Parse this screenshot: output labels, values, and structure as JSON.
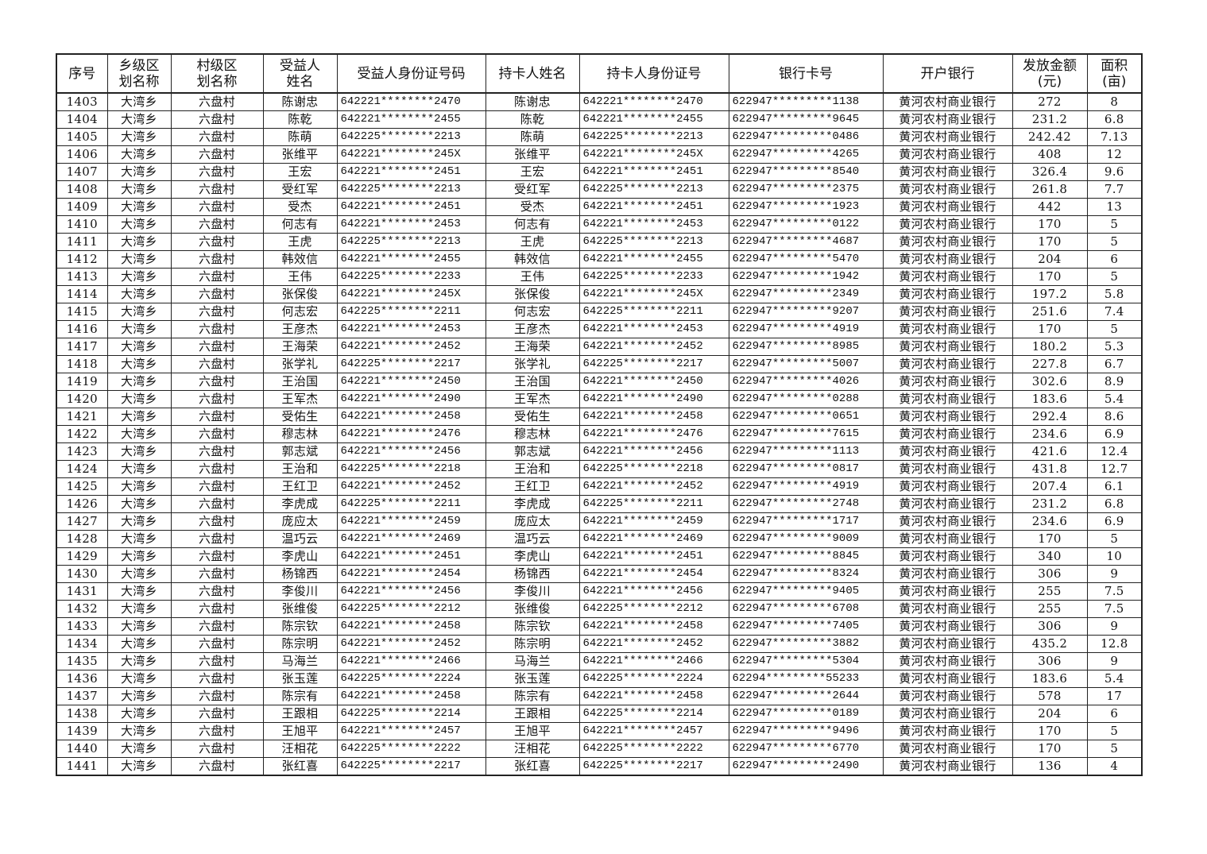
{
  "headers": [
    "序号",
    "乡级区\n划名称",
    "村级区\n划名称",
    "受益人\n姓名",
    "受益人身份证号码",
    "持卡人姓名",
    "持卡人身份证号",
    "银行卡号",
    "开户银行",
    "发放金额\n(元)",
    "面积\n(亩)"
  ],
  "rows": [
    [
      "1403",
      "大湾乡",
      "六盘村",
      "陈谢忠",
      "642221********2470",
      "陈谢忠",
      "642221********2470",
      "622947*********1138",
      "黄河农村商业银行",
      "272",
      "8"
    ],
    [
      "1404",
      "大湾乡",
      "六盘村",
      "陈乾",
      "642221********2455",
      "陈乾",
      "642221********2455",
      "622947*********9645",
      "黄河农村商业银行",
      "231.2",
      "6.8"
    ],
    [
      "1405",
      "大湾乡",
      "六盘村",
      "陈萌",
      "642225********2213",
      "陈萌",
      "642225********2213",
      "622947*********0486",
      "黄河农村商业银行",
      "242.42",
      "7.13"
    ],
    [
      "1406",
      "大湾乡",
      "六盘村",
      "张维平",
      "642221********245X",
      "张维平",
      "642221********245X",
      "622947*********4265",
      "黄河农村商业银行",
      "408",
      "12"
    ],
    [
      "1407",
      "大湾乡",
      "六盘村",
      "王宏",
      "642221********2451",
      "王宏",
      "642221********2451",
      "622947*********8540",
      "黄河农村商业银行",
      "326.4",
      "9.6"
    ],
    [
      "1408",
      "大湾乡",
      "六盘村",
      "受红军",
      "642225********2213",
      "受红军",
      "642225********2213",
      "622947*********2375",
      "黄河农村商业银行",
      "261.8",
      "7.7"
    ],
    [
      "1409",
      "大湾乡",
      "六盘村",
      "受杰",
      "642221********2451",
      "受杰",
      "642221********2451",
      "622947*********1923",
      "黄河农村商业银行",
      "442",
      "13"
    ],
    [
      "1410",
      "大湾乡",
      "六盘村",
      "何志有",
      "642221********2453",
      "何志有",
      "642221********2453",
      "622947*********0122",
      "黄河农村商业银行",
      "170",
      "5"
    ],
    [
      "1411",
      "大湾乡",
      "六盘村",
      "王虎",
      "642225********2213",
      "王虎",
      "642225********2213",
      "622947*********4687",
      "黄河农村商业银行",
      "170",
      "5"
    ],
    [
      "1412",
      "大湾乡",
      "六盘村",
      "韩效信",
      "642221********2455",
      "韩效信",
      "642221********2455",
      "622947*********5470",
      "黄河农村商业银行",
      "204",
      "6"
    ],
    [
      "1413",
      "大湾乡",
      "六盘村",
      "王伟",
      "642225********2233",
      "王伟",
      "642225********2233",
      "622947*********1942",
      "黄河农村商业银行",
      "170",
      "5"
    ],
    [
      "1414",
      "大湾乡",
      "六盘村",
      "张保俊",
      "642221********245X",
      "张保俊",
      "642221********245X",
      "622947*********2349",
      "黄河农村商业银行",
      "197.2",
      "5.8"
    ],
    [
      "1415",
      "大湾乡",
      "六盘村",
      "何志宏",
      "642225********2211",
      "何志宏",
      "642225********2211",
      "622947*********9207",
      "黄河农村商业银行",
      "251.6",
      "7.4"
    ],
    [
      "1416",
      "大湾乡",
      "六盘村",
      "王彦杰",
      "642221********2453",
      "王彦杰",
      "642221********2453",
      "622947*********4919",
      "黄河农村商业银行",
      "170",
      "5"
    ],
    [
      "1417",
      "大湾乡",
      "六盘村",
      "王海荣",
      "642221********2452",
      "王海荣",
      "642221********2452",
      "622947*********8985",
      "黄河农村商业银行",
      "180.2",
      "5.3"
    ],
    [
      "1418",
      "大湾乡",
      "六盘村",
      "张学礼",
      "642225********2217",
      "张学礼",
      "642225********2217",
      "622947*********5007",
      "黄河农村商业银行",
      "227.8",
      "6.7"
    ],
    [
      "1419",
      "大湾乡",
      "六盘村",
      "王治国",
      "642221********2450",
      "王治国",
      "642221********2450",
      "622947*********4026",
      "黄河农村商业银行",
      "302.6",
      "8.9"
    ],
    [
      "1420",
      "大湾乡",
      "六盘村",
      "王军杰",
      "642221********2490",
      "王军杰",
      "642221********2490",
      "622947*********0288",
      "黄河农村商业银行",
      "183.6",
      "5.4"
    ],
    [
      "1421",
      "大湾乡",
      "六盘村",
      "受佑生",
      "642221********2458",
      "受佑生",
      "642221********2458",
      "622947*********0651",
      "黄河农村商业银行",
      "292.4",
      "8.6"
    ],
    [
      "1422",
      "大湾乡",
      "六盘村",
      "穆志林",
      "642221********2476",
      "穆志林",
      "642221********2476",
      "622947*********7615",
      "黄河农村商业银行",
      "234.6",
      "6.9"
    ],
    [
      "1423",
      "大湾乡",
      "六盘村",
      "郭志斌",
      "642221********2456",
      "郭志斌",
      "642221********2456",
      "622947*********1113",
      "黄河农村商业银行",
      "421.6",
      "12.4"
    ],
    [
      "1424",
      "大湾乡",
      "六盘村",
      "王治和",
      "642225********2218",
      "王治和",
      "642225********2218",
      "622947*********0817",
      "黄河农村商业银行",
      "431.8",
      "12.7"
    ],
    [
      "1425",
      "大湾乡",
      "六盘村",
      "王红卫",
      "642221********2452",
      "王红卫",
      "642221********2452",
      "622947*********4919",
      "黄河农村商业银行",
      "207.4",
      "6.1"
    ],
    [
      "1426",
      "大湾乡",
      "六盘村",
      "李虎成",
      "642225********2211",
      "李虎成",
      "642225********2211",
      "622947*********2748",
      "黄河农村商业银行",
      "231.2",
      "6.8"
    ],
    [
      "1427",
      "大湾乡",
      "六盘村",
      "庞应太",
      "642221********2459",
      "庞应太",
      "642221********2459",
      "622947*********1717",
      "黄河农村商业银行",
      "234.6",
      "6.9"
    ],
    [
      "1428",
      "大湾乡",
      "六盘村",
      "温巧云",
      "642221********2469",
      "温巧云",
      "642221********2469",
      "622947*********9009",
      "黄河农村商业银行",
      "170",
      "5"
    ],
    [
      "1429",
      "大湾乡",
      "六盘村",
      "李虎山",
      "642221********2451",
      "李虎山",
      "642221********2451",
      "622947*********8845",
      "黄河农村商业银行",
      "340",
      "10"
    ],
    [
      "1430",
      "大湾乡",
      "六盘村",
      "杨锦西",
      "642221********2454",
      "杨锦西",
      "642221********2454",
      "622947*********8324",
      "黄河农村商业银行",
      "306",
      "9"
    ],
    [
      "1431",
      "大湾乡",
      "六盘村",
      "李俊川",
      "642221********2456",
      "李俊川",
      "642221********2456",
      "622947*********9405",
      "黄河农村商业银行",
      "255",
      "7.5"
    ],
    [
      "1432",
      "大湾乡",
      "六盘村",
      "张维俊",
      "642225********2212",
      "张维俊",
      "642225********2212",
      "622947*********6708",
      "黄河农村商业银行",
      "255",
      "7.5"
    ],
    [
      "1433",
      "大湾乡",
      "六盘村",
      "陈宗钦",
      "642221********2458",
      "陈宗钦",
      "642221********2458",
      "622947*********7405",
      "黄河农村商业银行",
      "306",
      "9"
    ],
    [
      "1434",
      "大湾乡",
      "六盘村",
      "陈宗明",
      "642221********2452",
      "陈宗明",
      "642221********2452",
      "622947*********3882",
      "黄河农村商业银行",
      "435.2",
      "12.8"
    ],
    [
      "1435",
      "大湾乡",
      "六盘村",
      "马海兰",
      "642221********2466",
      "马海兰",
      "642221********2466",
      "622947*********5304",
      "黄河农村商业银行",
      "306",
      "9"
    ],
    [
      "1436",
      "大湾乡",
      "六盘村",
      "张玉莲",
      "642225********2224",
      "张玉莲",
      "642225********2224",
      "62294*********55233",
      "黄河农村商业银行",
      "183.6",
      "5.4"
    ],
    [
      "1437",
      "大湾乡",
      "六盘村",
      "陈宗有",
      "642221********2458",
      "陈宗有",
      "642221********2458",
      "622947*********2644",
      "黄河农村商业银行",
      "578",
      "17"
    ],
    [
      "1438",
      "大湾乡",
      "六盘村",
      "王跟相",
      "642225********2214",
      "王跟相",
      "642225********2214",
      "622947*********0189",
      "黄河农村商业银行",
      "204",
      "6"
    ],
    [
      "1439",
      "大湾乡",
      "六盘村",
      "王旭平",
      "642221********2457",
      "王旭平",
      "642221********2457",
      "622947*********9496",
      "黄河农村商业银行",
      "170",
      "5"
    ],
    [
      "1440",
      "大湾乡",
      "六盘村",
      "汪相花",
      "642225********2222",
      "汪相花",
      "642225********2222",
      "622947*********6770",
      "黄河农村商业银行",
      "170",
      "5"
    ],
    [
      "1441",
      "大湾乡",
      "六盘村",
      "张红喜",
      "642225********2217",
      "张红喜",
      "642225********2217",
      "622947*********2490",
      "黄河农村商业银行",
      "136",
      "4"
    ]
  ]
}
